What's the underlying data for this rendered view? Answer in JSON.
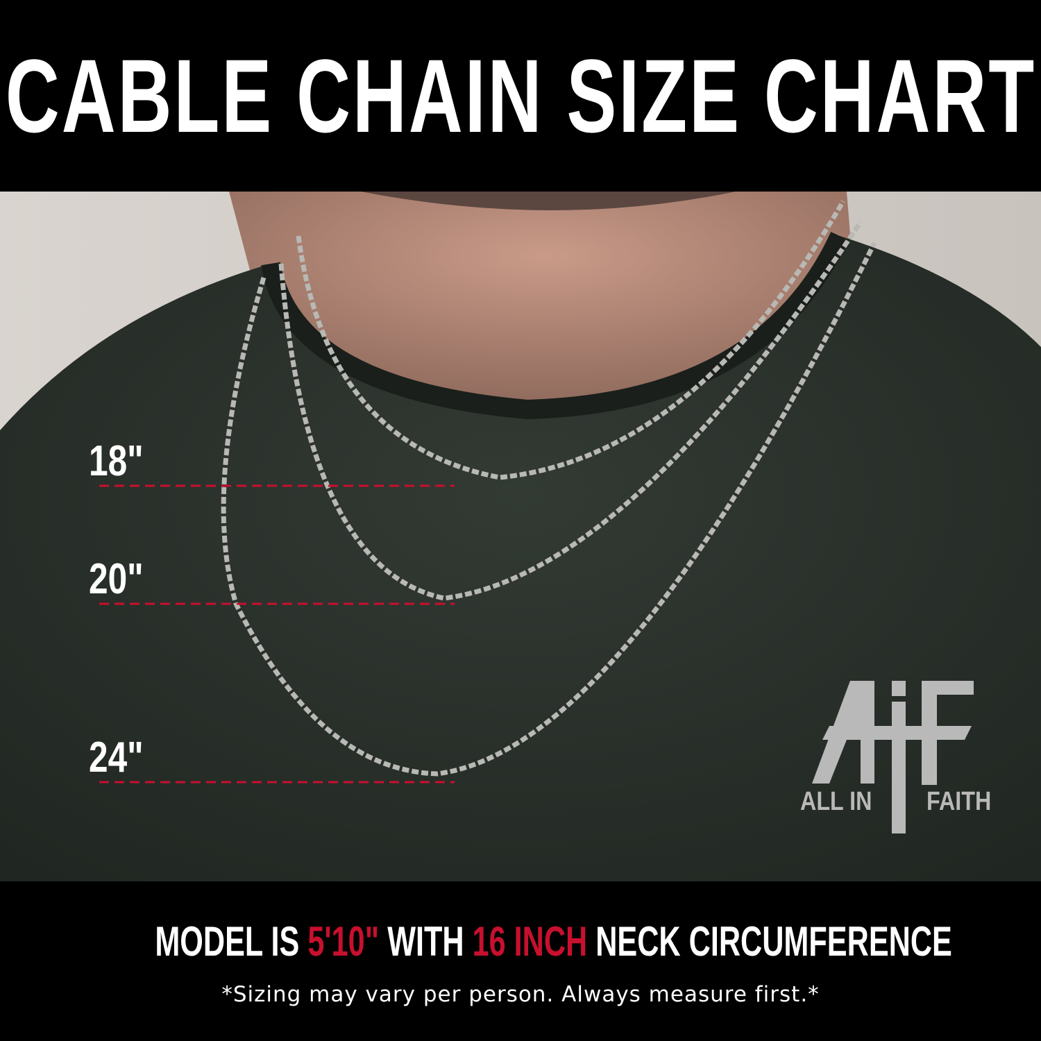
{
  "header": {
    "title": "CABLE CHAIN SIZE CHART"
  },
  "lengths": [
    {
      "label": "18\""
    },
    {
      "label": "20\""
    },
    {
      "label": "24\""
    }
  ],
  "logo": {
    "monogram": "AiF",
    "left_text": "ALL IN",
    "right_text": "FAITH"
  },
  "footer": {
    "model_prefix": "MODEL IS ",
    "height": "5'10\"",
    "with": " WITH ",
    "neck": "16 INCH",
    "suffix": " NECK CIRCUMFERENCE",
    "disclaimer": "*Sizing may vary per person. Always measure first.*"
  },
  "colors": {
    "accent": "#c8102e",
    "shirt": "#2a302b",
    "background": "#000000"
  }
}
